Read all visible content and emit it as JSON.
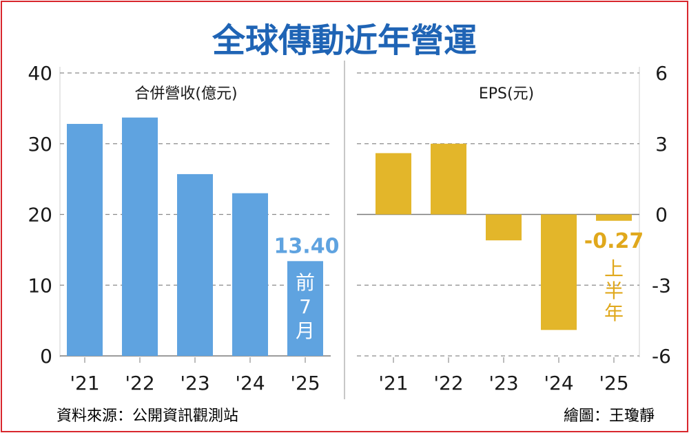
{
  "title": "全球傳動近年營運",
  "source": "資料來源：公開資訊觀測站",
  "credit": "繪圖：王瓊靜",
  "colors": {
    "title": "#1f64b5",
    "revenue_bar": "#5fa3e0",
    "eps_bar": "#e3b62a",
    "eps_label": "#e0a81c",
    "border": "#d8262c",
    "grid": "#8a8a8a",
    "axis_text": "#1a1a1a"
  },
  "chart_data": [
    {
      "type": "bar",
      "title": "合併營收(億元)",
      "categories": [
        "'21",
        "'22",
        "'23",
        "'24",
        "'25"
      ],
      "values": [
        32.8,
        33.7,
        25.7,
        23.0,
        13.4
      ],
      "ylim": [
        0,
        40
      ],
      "yticks": [
        "0",
        "10",
        "20",
        "30",
        "40"
      ],
      "grid": true,
      "annotations": {
        "value_label": "13.40",
        "bar_note": [
          "前",
          "7",
          "月"
        ]
      }
    },
    {
      "type": "bar",
      "title": "EPS(元)",
      "categories": [
        "'21",
        "'22",
        "'23",
        "'24",
        "'25"
      ],
      "values": [
        2.6,
        3.0,
        -1.1,
        -4.9,
        -0.27
      ],
      "ylim": [
        -6,
        6
      ],
      "yticks": [
        "-6",
        "-3",
        "0",
        "3",
        "6"
      ],
      "grid": true,
      "annotations": {
        "value_label": "-0.27",
        "bar_note": [
          "上",
          "半",
          "年"
        ]
      }
    }
  ]
}
